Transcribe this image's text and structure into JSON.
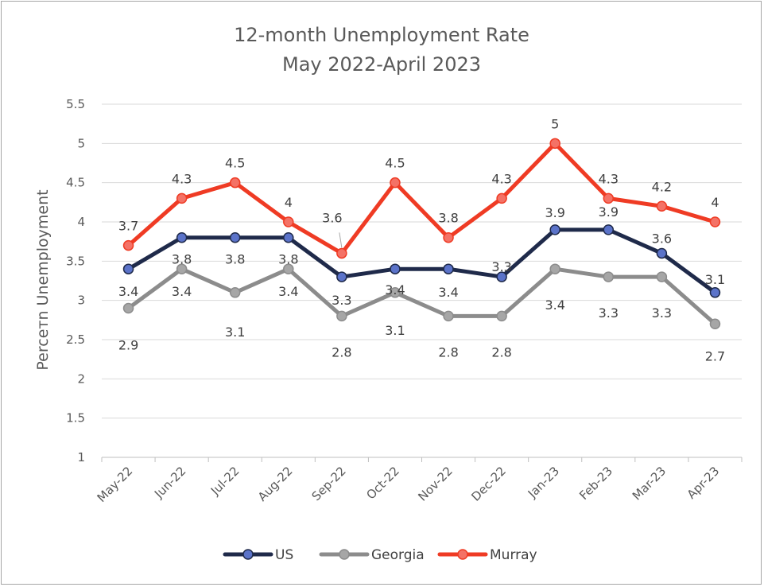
{
  "chart_data": {
    "type": "line",
    "title": [
      "12-month Unemployment Rate",
      "May 2022-April 2023"
    ],
    "ylabel": "Perceтn Unemployment",
    "ylim": [
      1,
      5.5
    ],
    "yticks": [
      "1",
      "1.5",
      "2",
      "2.5",
      "3",
      "3.5",
      "4",
      "4.5",
      "5",
      "5.5"
    ],
    "categories": [
      "May-22",
      "Jun-22",
      "Jul-22",
      "Aug-22",
      "Sep-22",
      "Oct-22",
      "Nov-22",
      "Dec-22",
      "Jan-23",
      "Feb-23",
      "Mar-23",
      "Apr-23"
    ],
    "grid": true,
    "legend_position": "bottom",
    "series": [
      {
        "name": "US",
        "color": "#1f2a4a",
        "marker": "#5b73c9",
        "values": [
          3.4,
          3.8,
          3.8,
          3.8,
          3.3,
          3.4,
          3.4,
          3.3,
          3.9,
          3.9,
          3.6,
          3.1
        ]
      },
      {
        "name": "Georgia",
        "color": "#8c8c8c",
        "marker": "#a6a6a6",
        "values": [
          2.9,
          3.4,
          3.1,
          3.4,
          2.8,
          3.1,
          2.8,
          2.8,
          3.4,
          3.3,
          3.3,
          2.7
        ]
      },
      {
        "name": "Murray",
        "color": "#ef3b24",
        "marker": "#f47266",
        "values": [
          3.7,
          4.3,
          4.5,
          4.0,
          3.6,
          4.5,
          3.8,
          4.3,
          5.0,
          4.3,
          4.2,
          4.0
        ]
      }
    ],
    "data_labels": {
      "US": [
        "3.4",
        "3.8",
        "3.8",
        "3.8",
        "3.3",
        "3.4",
        "3.4",
        "3.3",
        "3.9",
        "3.9",
        "3.6",
        "3.1"
      ],
      "Georgia": [
        "2.9",
        "3.4",
        "3.1",
        "3.4",
        "2.8",
        "3.1",
        "2.8",
        "2.8",
        "3.4",
        "3.3",
        "3.3",
        "2.7"
      ],
      "Murray": [
        "3.7",
        "4.3",
        "4.5",
        "4",
        "3.6",
        "4.5",
        "3.8",
        "4.3",
        "5",
        "4.3",
        "4.2",
        "4"
      ]
    }
  }
}
